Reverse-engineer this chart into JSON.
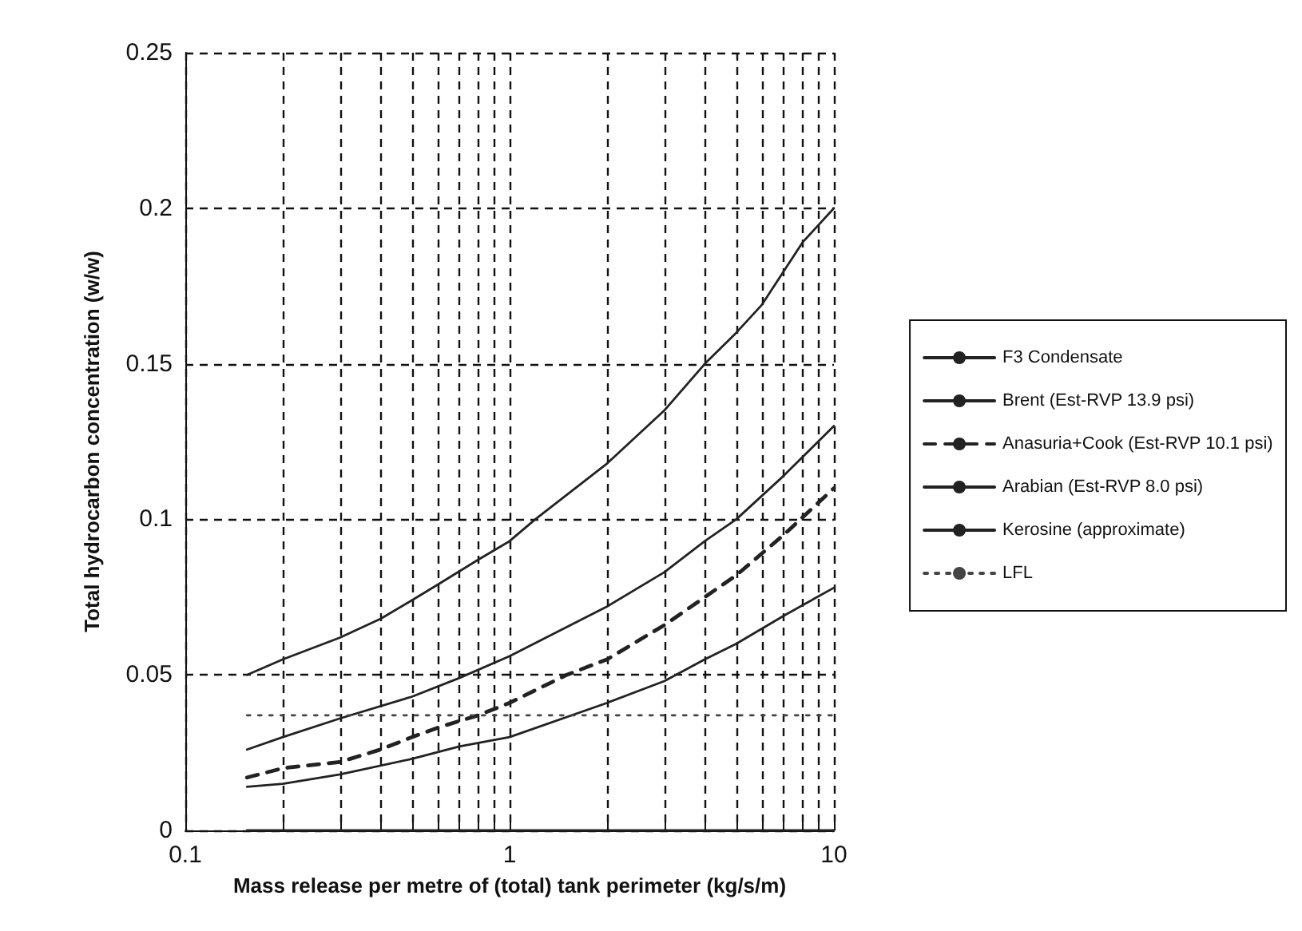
{
  "chart_data": {
    "type": "line",
    "xlabel": "Mass release per metre of (total) tank perimeter (kg/s/m)",
    "ylabel": "Total hydrocarbon concentration (w/w)",
    "xlim": [
      0.1,
      10
    ],
    "ylim": [
      0,
      0.25
    ],
    "log": "x",
    "xticks": [
      0.1,
      {
        "value": 0.2,
        "label": null
      },
      {
        "value": 0.3,
        "label": null
      },
      {
        "value": 0.4,
        "label": null
      },
      {
        "value": 0.5,
        "label": null
      },
      {
        "value": 0.6,
        "label": null
      },
      {
        "value": 0.7,
        "label": null
      },
      {
        "value": 0.8,
        "label": null
      },
      {
        "value": 0.9,
        "label": null
      },
      1,
      {
        "value": 2,
        "label": null
      },
      {
        "value": 3,
        "label": null
      },
      {
        "value": 4,
        "label": null
      },
      {
        "value": 5,
        "label": null
      },
      {
        "value": 6,
        "label": null
      },
      {
        "value": 7,
        "label": null
      },
      {
        "value": 8,
        "label": null
      },
      {
        "value": 9,
        "label": null
      },
      10
    ],
    "yticks": [
      0,
      0.05,
      0.1,
      0.15,
      0.2,
      0.25
    ],
    "grid": true,
    "legend": "right",
    "marker": "none",
    "series": [
      {
        "name": "F3 Condensate",
        "color": "#222222",
        "line_style": "solid",
        "x": [
          0.155,
          0.2,
          0.3,
          0.4,
          0.5,
          0.6,
          0.8,
          1,
          1.2,
          2,
          3,
          4,
          5,
          6,
          8,
          10
        ],
        "values": [
          0.05,
          0.055,
          0.062,
          0.068,
          0.074,
          0.079,
          0.087,
          0.093,
          0.1,
          0.118,
          0.135,
          0.15,
          0.16,
          0.169,
          0.189,
          0.2
        ]
      },
      {
        "name": "Brent (Est-RVP 13.9 psi)",
        "color": "#222222",
        "line_style": "solid",
        "x": [
          0.155,
          0.2,
          0.3,
          0.5,
          0.7,
          1,
          2,
          3,
          4,
          5,
          7,
          10
        ],
        "values": [
          0.026,
          0.03,
          0.036,
          0.043,
          0.049,
          0.056,
          0.072,
          0.083,
          0.093,
          0.1,
          0.114,
          0.13
        ]
      },
      {
        "name": "Anasuria+Cook (Est-RVP 10.1 psi)",
        "color": "#222222",
        "line_style": "dashed",
        "x": [
          0.155,
          0.2,
          0.3,
          0.4,
          0.5,
          0.6,
          0.8,
          1,
          1.5,
          2,
          3,
          4,
          5,
          7,
          10
        ],
        "values": [
          0.017,
          0.02,
          0.022,
          0.026,
          0.03,
          0.033,
          0.037,
          0.041,
          0.05,
          0.055,
          0.066,
          0.075,
          0.082,
          0.095,
          0.11
        ]
      },
      {
        "name": "Arabian (Est-RVP 8.0 psi)",
        "color": "#222222",
        "line_style": "solid",
        "x": [
          0.155,
          0.2,
          0.3,
          0.5,
          0.7,
          1,
          2,
          3,
          4,
          5,
          7,
          10
        ],
        "values": [
          0.014,
          0.015,
          0.018,
          0.023,
          0.027,
          0.03,
          0.041,
          0.048,
          0.055,
          0.06,
          0.069,
          0.078
        ]
      },
      {
        "name": "Kerosine (approximate)",
        "color": "#222222",
        "line_style": "solid",
        "x": [
          0.155,
          10
        ],
        "values": [
          0,
          0
        ]
      },
      {
        "name": "LFL",
        "color": "#444444",
        "line_style": "dotted",
        "x": [
          0.155,
          10
        ],
        "values": [
          0.037,
          0.037
        ]
      }
    ]
  }
}
